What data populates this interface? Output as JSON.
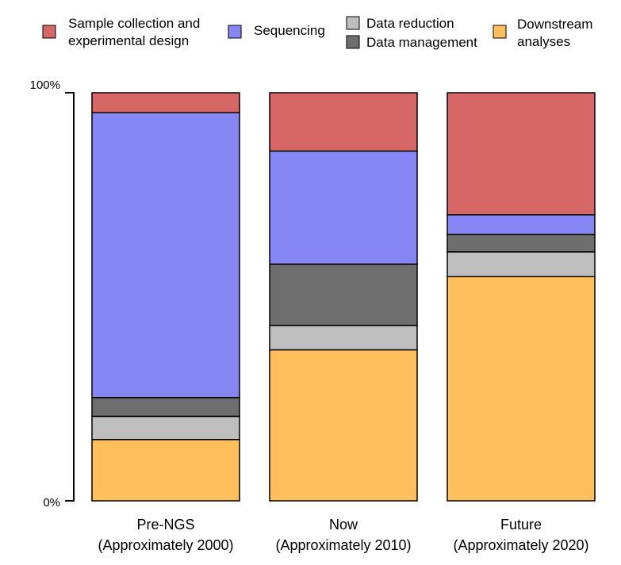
{
  "chart_data": {
    "type": "bar",
    "stacked": true,
    "title": "",
    "xlabel": "",
    "ylabel": "",
    "ylim": [
      0,
      100
    ],
    "y_tick_labels": [
      "0%",
      "100%"
    ],
    "categories": [
      [
        "Pre-NGS",
        "(Approximately 2000)"
      ],
      [
        "Now",
        "(Approximately 2010)"
      ],
      [
        "Future",
        "(Approximately 2020)"
      ]
    ],
    "series": [
      {
        "name": "Downstream analyses",
        "legend_lines": [
          "Downstream",
          "analyses"
        ],
        "color": "#FFBF5C",
        "values": [
          15,
          37,
          55
        ]
      },
      {
        "name": "Data reduction",
        "legend_lines": [
          "Data reduction"
        ],
        "color": "#BEBEBE",
        "values": [
          5.7,
          6,
          6
        ]
      },
      {
        "name": "Data management",
        "legend_lines": [
          "Data management"
        ],
        "color": "#6E6E6E",
        "values": [
          4.6,
          15,
          4.3
        ]
      },
      {
        "name": "Sequencing",
        "legend_lines": [
          "Sequencing"
        ],
        "color": "#8686F4",
        "values": [
          69.8,
          27.7,
          4.8
        ]
      },
      {
        "name": "Sample collection and experimental design",
        "legend_lines": [
          "Sample collection and",
          "experimental design"
        ],
        "color": "#D76666",
        "values": [
          4.9,
          14.3,
          29.9
        ]
      }
    ],
    "legend_order": [
      "Sample collection and experimental design",
      "Sequencing",
      "Data reduction",
      "Data management",
      "Downstream analyses"
    ],
    "legend_position": "top",
    "grid": false
  }
}
